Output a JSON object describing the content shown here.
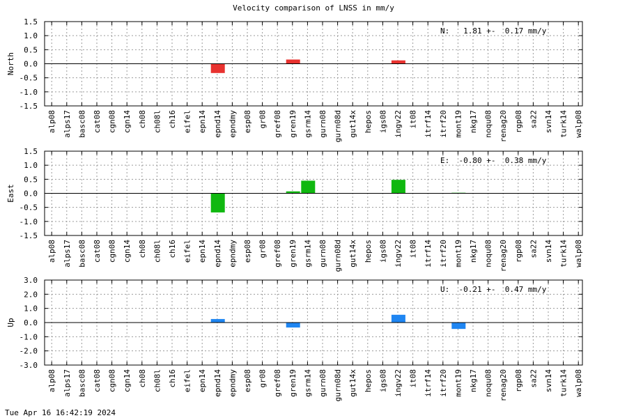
{
  "title": "Velocity comparison of LNSS in mm/y",
  "timestamp": "Tue Apr 16 16:42:19 2024",
  "stations": [
    "alp08",
    "alps17",
    "basc08",
    "cat08",
    "cgn08",
    "cgn14",
    "ch08",
    "ch08l",
    "ch16",
    "eifel",
    "epn14",
    "epnd14",
    "epndmy",
    "esp08",
    "gr08",
    "gref08",
    "gren19",
    "gsrm14",
    "gurn08",
    "gurn08d",
    "gut14x",
    "hepos",
    "igs08",
    "ingv22",
    "it08",
    "itrf14",
    "itrf20",
    "mont19",
    "nkg17",
    "noqu08",
    "renag20",
    "rgp08",
    "sa22",
    "svn14",
    "turk14",
    "walp08"
  ],
  "chart_data": [
    {
      "type": "bar",
      "ylabel": "North",
      "ylim": [
        -1.5,
        1.5
      ],
      "yticks": [
        "-1.5",
        "-1.0",
        "-0.5",
        "0.0",
        "0.5",
        "1.0",
        "1.5"
      ],
      "grid": true,
      "color": "#e8322f",
      "summary": "N:   1.81 +-  0.17 mm/y",
      "values": [
        0,
        0,
        0,
        0,
        0,
        0,
        0,
        0,
        0,
        0,
        0,
        -0.33,
        0,
        0,
        0,
        0,
        0.15,
        0,
        0,
        0,
        0,
        0,
        0,
        0.12,
        0,
        0,
        0,
        0,
        0,
        0,
        0,
        0,
        0,
        0,
        0,
        0
      ]
    },
    {
      "type": "bar",
      "ylabel": "East",
      "ylim": [
        -1.5,
        1.5
      ],
      "yticks": [
        "-1.5",
        "-1.0",
        "-0.5",
        "0.0",
        "0.5",
        "1.0",
        "1.5"
      ],
      "grid": true,
      "color": "#10b810",
      "summary": "E:  -0.80 +-  0.38 mm/y",
      "values": [
        0,
        0,
        0,
        0,
        0,
        0,
        0,
        0,
        0,
        0,
        0,
        -0.68,
        0,
        0,
        0,
        0,
        0.07,
        0.45,
        0,
        0,
        0,
        0,
        0,
        0.48,
        0,
        0,
        0,
        0.02,
        0,
        0,
        0,
        0,
        0,
        0,
        0,
        0
      ]
    },
    {
      "type": "bar",
      "ylabel": "Up",
      "ylim": [
        -3.0,
        3.0
      ],
      "yticks": [
        "-3.0",
        "-2.0",
        "-1.0",
        "0.0",
        "1.0",
        "2.0",
        "3.0"
      ],
      "grid": true,
      "color": "#1f86f2",
      "summary": "U:  -0.21 +-  0.47 mm/y",
      "values": [
        0,
        0,
        0,
        0,
        0,
        0,
        0,
        0,
        0,
        0,
        0,
        0.25,
        0,
        0,
        0,
        0,
        -0.35,
        0,
        0,
        0,
        0,
        0,
        0,
        0.55,
        0,
        0,
        0,
        -0.45,
        0,
        0,
        0,
        0,
        0,
        0,
        0,
        0
      ]
    }
  ]
}
